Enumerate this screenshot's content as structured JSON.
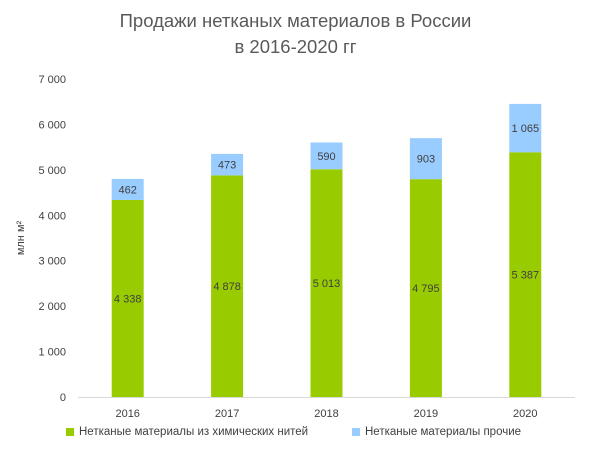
{
  "chart_data": {
    "type": "bar",
    "stacked": true,
    "title": [
      "Продажи нетканых материалов в России",
      "в 2016-2020 гг"
    ],
    "ylabel": "млн м²",
    "categories": [
      "2016",
      "2017",
      "2018",
      "2019",
      "2020"
    ],
    "ylim": [
      0,
      7000
    ],
    "yticks": [
      0,
      1000,
      2000,
      3000,
      4000,
      5000,
      6000,
      7000
    ],
    "ytick_labels": [
      "0",
      "1 000",
      "2 000",
      "3 000",
      "4 000",
      "5 000",
      "6 000",
      "7 000"
    ],
    "grid": false,
    "legend_position": "bottom",
    "series": [
      {
        "name": "Нетканые материалы из химических нитей",
        "color": "#99cc00",
        "values": [
          4338,
          4878,
          5013,
          4795,
          5387
        ],
        "labels": [
          "4 338",
          "4 878",
          "5 013",
          "4 795",
          "5 387"
        ]
      },
      {
        "name": "Нетканые материалы прочие",
        "color": "#99ccff",
        "values": [
          462,
          473,
          590,
          903,
          1065
        ],
        "labels": [
          "462",
          "473",
          "590",
          "903",
          "1 065"
        ]
      }
    ]
  }
}
